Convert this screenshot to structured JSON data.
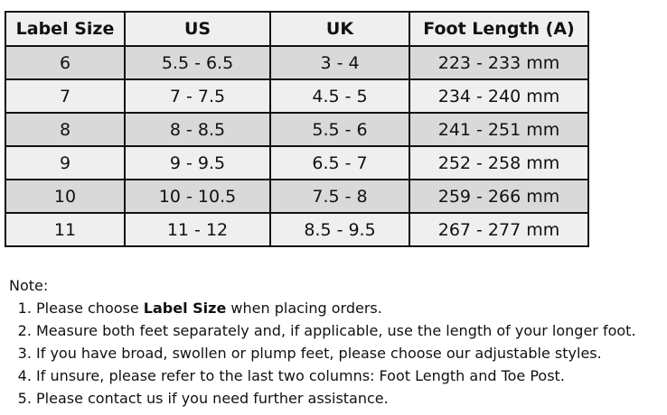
{
  "table": {
    "headers": [
      "Label Size",
      "US",
      "UK",
      "Foot Length (A)"
    ],
    "rows": [
      [
        "6",
        "5.5 - 6.5",
        "3 - 4",
        "223 - 233 mm"
      ],
      [
        "7",
        "7 - 7.5",
        "4.5 - 5",
        "234  - 240 mm"
      ],
      [
        "8",
        "8 - 8.5",
        "5.5 - 6",
        "241  - 251 mm"
      ],
      [
        "9",
        "9 - 9.5",
        "6.5 - 7",
        "252  - 258 mm"
      ],
      [
        "10",
        "10 - 10.5",
        "7.5 - 8",
        "259  - 266 mm"
      ],
      [
        "11",
        "11 - 12",
        "8.5 - 9.5",
        "267  - 277 mm"
      ]
    ]
  },
  "notes": {
    "title": "Note:",
    "item1_pre": "Please choose ",
    "item1_bold": "Label Size",
    "item1_post": " when placing orders.",
    "items": [
      "Measure both feet separately and, if applicable, use the length of your longer foot.",
      "If you have broad, swollen or plump feet, please choose our adjustable styles.",
      "If unsure, please refer to the last two columns: Foot Length and Toe Post.",
      "Please contact us if you need further assistance."
    ]
  }
}
